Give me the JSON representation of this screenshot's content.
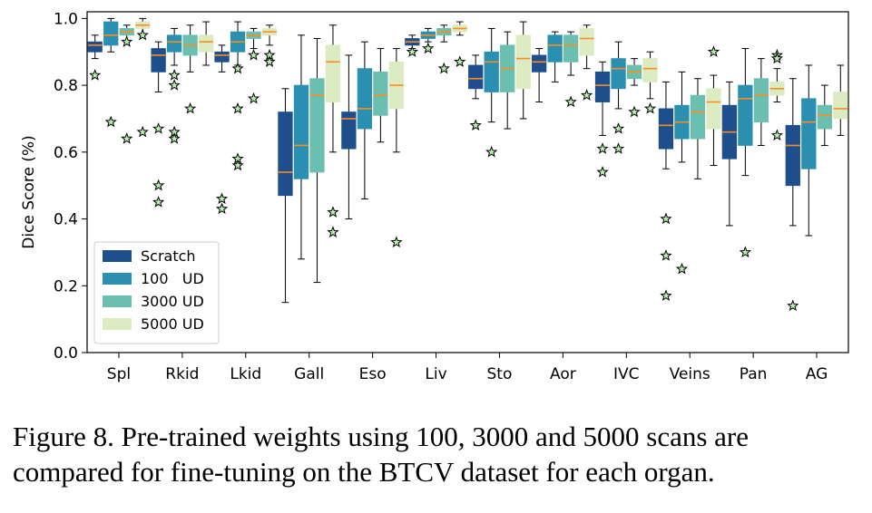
{
  "caption": "Figure 8. Pre-trained weights using 100, 3000 and 5000 scans are compared for fine-tuning on the BTCV dataset for each organ.",
  "chart_data": {
    "type": "box",
    "ylabel": "Dice Score (%)",
    "xlabel": "",
    "ylim": [
      0.0,
      1.02
    ],
    "yticks": [
      "0.0",
      "0.2",
      "0.4",
      "0.6",
      "0.8",
      "1.0"
    ],
    "grid": false,
    "legend_position": "lower-left",
    "median_color": "#ff8c1a",
    "categories": [
      "Spl",
      "Rkid",
      "Lkid",
      "Gall",
      "Eso",
      "Liv",
      "Sto",
      "Aor",
      "IVC",
      "Veins",
      "Pan",
      "AG"
    ],
    "series": [
      {
        "name": "Scratch",
        "color": "#1f4e8c",
        "boxes": [
          {
            "whislo": 0.88,
            "q1": 0.9,
            "med": 0.92,
            "q3": 0.93,
            "whishi": 0.95,
            "fliers": [
              0.83
            ]
          },
          {
            "whislo": 0.78,
            "q1": 0.84,
            "med": 0.89,
            "q3": 0.91,
            "whishi": 0.93,
            "fliers": [
              0.67,
              0.5,
              0.45
            ]
          },
          {
            "whislo": 0.84,
            "q1": 0.87,
            "med": 0.89,
            "q3": 0.9,
            "whishi": 0.92,
            "fliers": [
              0.46,
              0.43
            ]
          },
          {
            "whislo": 0.15,
            "q1": 0.47,
            "med": 0.54,
            "q3": 0.72,
            "whishi": 0.79,
            "fliers": []
          },
          {
            "whislo": 0.4,
            "q1": 0.61,
            "med": 0.7,
            "q3": 0.72,
            "whishi": 0.89,
            "fliers": []
          },
          {
            "whislo": 0.91,
            "q1": 0.92,
            "med": 0.93,
            "q3": 0.94,
            "whishi": 0.95,
            "fliers": [
              0.9
            ]
          },
          {
            "whislo": 0.76,
            "q1": 0.79,
            "med": 0.82,
            "q3": 0.86,
            "whishi": 0.89,
            "fliers": [
              0.68
            ]
          },
          {
            "whislo": 0.75,
            "q1": 0.84,
            "med": 0.87,
            "q3": 0.89,
            "whishi": 0.91,
            "fliers": []
          },
          {
            "whislo": 0.65,
            "q1": 0.75,
            "med": 0.8,
            "q3": 0.84,
            "whishi": 0.87,
            "fliers": [
              0.61,
              0.54
            ]
          },
          {
            "whislo": 0.55,
            "q1": 0.61,
            "med": 0.68,
            "q3": 0.73,
            "whishi": 0.81,
            "fliers": [
              0.4,
              0.29,
              0.17
            ]
          },
          {
            "whislo": 0.38,
            "q1": 0.58,
            "med": 0.66,
            "q3": 0.74,
            "whishi": 0.81,
            "fliers": []
          },
          {
            "whislo": 0.38,
            "q1": 0.5,
            "med": 0.62,
            "q3": 0.68,
            "whishi": 0.82,
            "fliers": [
              0.14
            ]
          }
        ]
      },
      {
        "name": "100   UD",
        "color": "#2a8fb0",
        "boxes": [
          {
            "whislo": 0.9,
            "q1": 0.92,
            "med": 0.95,
            "q3": 0.99,
            "whishi": 1.0,
            "fliers": [
              0.69
            ]
          },
          {
            "whislo": 0.86,
            "q1": 0.9,
            "med": 0.93,
            "q3": 0.95,
            "whishi": 0.97,
            "fliers": [
              0.83,
              0.8,
              0.66,
              0.64
            ]
          },
          {
            "whislo": 0.86,
            "q1": 0.9,
            "med": 0.93,
            "q3": 0.96,
            "whishi": 0.99,
            "fliers": [
              0.85,
              0.73,
              0.58,
              0.56
            ]
          },
          {
            "whislo": 0.28,
            "q1": 0.52,
            "med": 0.62,
            "q3": 0.8,
            "whishi": 0.95,
            "fliers": []
          },
          {
            "whislo": 0.46,
            "q1": 0.67,
            "med": 0.73,
            "q3": 0.85,
            "whishi": 0.93,
            "fliers": []
          },
          {
            "whislo": 0.93,
            "q1": 0.94,
            "med": 0.95,
            "q3": 0.96,
            "whishi": 0.97,
            "fliers": [
              0.91
            ]
          },
          {
            "whislo": 0.69,
            "q1": 0.78,
            "med": 0.87,
            "q3": 0.9,
            "whishi": 0.97,
            "fliers": [
              0.6
            ]
          },
          {
            "whislo": 0.81,
            "q1": 0.87,
            "med": 0.92,
            "q3": 0.95,
            "whishi": 0.96,
            "fliers": []
          },
          {
            "whislo": 0.73,
            "q1": 0.79,
            "med": 0.85,
            "q3": 0.88,
            "whishi": 0.93,
            "fliers": [
              0.67,
              0.61
            ]
          },
          {
            "whislo": 0.57,
            "q1": 0.64,
            "med": 0.69,
            "q3": 0.74,
            "whishi": 0.84,
            "fliers": [
              0.25
            ]
          },
          {
            "whislo": 0.53,
            "q1": 0.62,
            "med": 0.76,
            "q3": 0.8,
            "whishi": 0.91,
            "fliers": [
              0.3
            ]
          },
          {
            "whislo": 0.35,
            "q1": 0.55,
            "med": 0.69,
            "q3": 0.76,
            "whishi": 0.86,
            "fliers": []
          }
        ]
      },
      {
        "name": "3000 UD",
        "color": "#6bbfb0",
        "boxes": [
          {
            "whislo": 0.93,
            "q1": 0.95,
            "med": 0.96,
            "q3": 0.97,
            "whishi": 0.98,
            "fliers": [
              0.93,
              0.64
            ]
          },
          {
            "whislo": 0.84,
            "q1": 0.89,
            "med": 0.92,
            "q3": 0.95,
            "whishi": 0.98,
            "fliers": [
              0.73
            ]
          },
          {
            "whislo": 0.91,
            "q1": 0.94,
            "med": 0.95,
            "q3": 0.96,
            "whishi": 0.97,
            "fliers": [
              0.89,
              0.76
            ]
          },
          {
            "whislo": 0.21,
            "q1": 0.54,
            "med": 0.77,
            "q3": 0.82,
            "whishi": 0.94,
            "fliers": []
          },
          {
            "whislo": 0.63,
            "q1": 0.71,
            "med": 0.77,
            "q3": 0.84,
            "whishi": 0.91,
            "fliers": []
          },
          {
            "whislo": 0.93,
            "q1": 0.95,
            "med": 0.96,
            "q3": 0.97,
            "whishi": 0.98,
            "fliers": [
              0.85
            ]
          },
          {
            "whislo": 0.67,
            "q1": 0.78,
            "med": 0.85,
            "q3": 0.92,
            "whishi": 0.96,
            "fliers": []
          },
          {
            "whislo": 0.83,
            "q1": 0.87,
            "med": 0.92,
            "q3": 0.95,
            "whishi": 0.96,
            "fliers": [
              0.75
            ]
          },
          {
            "whislo": 0.8,
            "q1": 0.82,
            "med": 0.84,
            "q3": 0.86,
            "whishi": 0.88,
            "fliers": [
              0.72
            ]
          },
          {
            "whislo": 0.52,
            "q1": 0.64,
            "med": 0.72,
            "q3": 0.77,
            "whishi": 0.82,
            "fliers": []
          },
          {
            "whislo": 0.62,
            "q1": 0.69,
            "med": 0.77,
            "q3": 0.82,
            "whishi": 0.88,
            "fliers": []
          },
          {
            "whislo": 0.62,
            "q1": 0.67,
            "med": 0.71,
            "q3": 0.74,
            "whishi": 0.8,
            "fliers": []
          }
        ]
      },
      {
        "name": "5000 UD",
        "color": "#dcebc2",
        "boxes": [
          {
            "whislo": 0.95,
            "q1": 0.97,
            "med": 0.98,
            "q3": 0.99,
            "whishi": 1.0,
            "fliers": [
              0.95,
              0.66
            ]
          },
          {
            "whislo": 0.86,
            "q1": 0.9,
            "med": 0.93,
            "q3": 0.95,
            "whishi": 0.99,
            "fliers": []
          },
          {
            "whislo": 0.92,
            "q1": 0.95,
            "med": 0.96,
            "q3": 0.97,
            "whishi": 0.98,
            "fliers": [
              0.89,
              0.87
            ]
          },
          {
            "whislo": 0.6,
            "q1": 0.75,
            "med": 0.87,
            "q3": 0.92,
            "whishi": 0.98,
            "fliers": [
              0.42,
              0.36
            ]
          },
          {
            "whislo": 0.6,
            "q1": 0.73,
            "med": 0.8,
            "q3": 0.87,
            "whishi": 0.91,
            "fliers": [
              0.33
            ]
          },
          {
            "whislo": 0.95,
            "q1": 0.96,
            "med": 0.97,
            "q3": 0.98,
            "whishi": 0.99,
            "fliers": [
              0.87
            ]
          },
          {
            "whislo": 0.7,
            "q1": 0.79,
            "med": 0.88,
            "q3": 0.95,
            "whishi": 0.99,
            "fliers": []
          },
          {
            "whislo": 0.85,
            "q1": 0.89,
            "med": 0.94,
            "q3": 0.97,
            "whishi": 0.98,
            "fliers": [
              0.77
            ]
          },
          {
            "whislo": 0.76,
            "q1": 0.81,
            "med": 0.85,
            "q3": 0.88,
            "whishi": 0.9,
            "fliers": [
              0.73
            ]
          },
          {
            "whislo": 0.56,
            "q1": 0.67,
            "med": 0.75,
            "q3": 0.79,
            "whishi": 0.83,
            "fliers": [
              0.9
            ]
          },
          {
            "whislo": 0.75,
            "q1": 0.77,
            "med": 0.79,
            "q3": 0.81,
            "whishi": 0.85,
            "fliers": [
              0.89,
              0.88,
              0.65
            ]
          },
          {
            "whislo": 0.65,
            "q1": 0.7,
            "med": 0.73,
            "q3": 0.78,
            "whishi": 0.86,
            "fliers": []
          }
        ]
      }
    ]
  }
}
